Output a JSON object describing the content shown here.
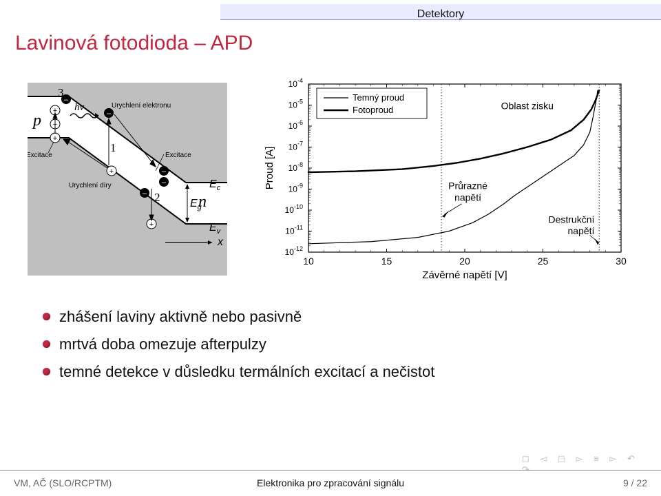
{
  "header": {
    "label": "Detektory"
  },
  "title": "Lavinová fotodioda – APD",
  "diagram": {
    "p_label": "p",
    "n_label": "n",
    "numbers": [
      "1",
      "2",
      "3"
    ],
    "hnu": "hν",
    "urychleni_elektronu": "Urychlení elektronu",
    "urychleni_diry": "Urychlení díry",
    "excitace": "Excitace",
    "Ec": "E",
    "Ec_sub": "c",
    "Eg": "E",
    "Eg_sub": "g",
    "Ev": "E",
    "Ev_sub": "v",
    "x": "x",
    "colors": {
      "band_fill": "#bfbfbf",
      "band_stroke": "#000000",
      "arrow": "#000000",
      "plus_fill": "#ffffff",
      "plus_stroke": "#000000",
      "minus_fill": "#000000"
    }
  },
  "chart": {
    "type": "line",
    "xlabel": "Závěrné napětí [V]",
    "ylabel": "Proud [A]",
    "xlim": [
      10,
      30
    ],
    "xtick_step": 5,
    "xticks": [
      "10",
      "15",
      "20",
      "25",
      "30"
    ],
    "ylog": true,
    "yticks": [
      "10",
      "10",
      "10",
      "10",
      "10",
      "10",
      "10",
      "10",
      "10"
    ],
    "yexp": [
      "-4",
      "-5",
      "-6",
      "-7",
      "-8",
      "-9",
      "-10",
      "-11",
      "-12"
    ],
    "legend": [
      "Temný proud",
      "Fotoproud"
    ],
    "series": {
      "dark": {
        "color": "#000000",
        "width": 1.2,
        "x": [
          10,
          14,
          17,
          19,
          20.5,
          21.5,
          22.5,
          23.2,
          24,
          24.8,
          25.5,
          26.2,
          27,
          27.6,
          28,
          28.2,
          28.35,
          28.45,
          28.5
        ],
        "y_exp": [
          -11.6,
          -11.5,
          -11.3,
          -11.0,
          -10.6,
          -10.2,
          -9.7,
          -9.3,
          -8.9,
          -8.5,
          -8.15,
          -7.8,
          -7.4,
          -6.9,
          -6.3,
          -5.6,
          -5.0,
          -4.6,
          -4.3
        ]
      },
      "photo": {
        "color": "#000000",
        "width": 2.4,
        "x": [
          10,
          13,
          16,
          18,
          19.5,
          21,
          22.5,
          24,
          25.5,
          26.8,
          27.6,
          28.1,
          28.35,
          28.5,
          28.6
        ],
        "y_exp": [
          -8.2,
          -8.15,
          -8.05,
          -7.9,
          -7.75,
          -7.55,
          -7.3,
          -7.0,
          -6.65,
          -6.2,
          -5.7,
          -5.2,
          -4.8,
          -4.5,
          -4.3
        ]
      }
    },
    "annotations": {
      "oblast_zisku": "Oblast zisku",
      "prurazne": "Průrazné",
      "prurazne2": "napětí",
      "destrukcni": "Destrukční",
      "destrukcni2": "napětí"
    },
    "vlines": [
      18.5,
      28.6
    ],
    "colors": {
      "axis": "#000000",
      "grid": "#000000",
      "vline": "#000000"
    }
  },
  "bullets": [
    "zhášení laviny aktivně nebo pasivně",
    "mrtvá doba omezuje afterpulzy",
    "temné detekce v důsledku termálních excitací a nečistot"
  ],
  "footer": {
    "left": "VM, AČ (SLO/RCPTM)",
    "center": "Elektronika pro zpracování signálu",
    "right": "9 / 22"
  }
}
